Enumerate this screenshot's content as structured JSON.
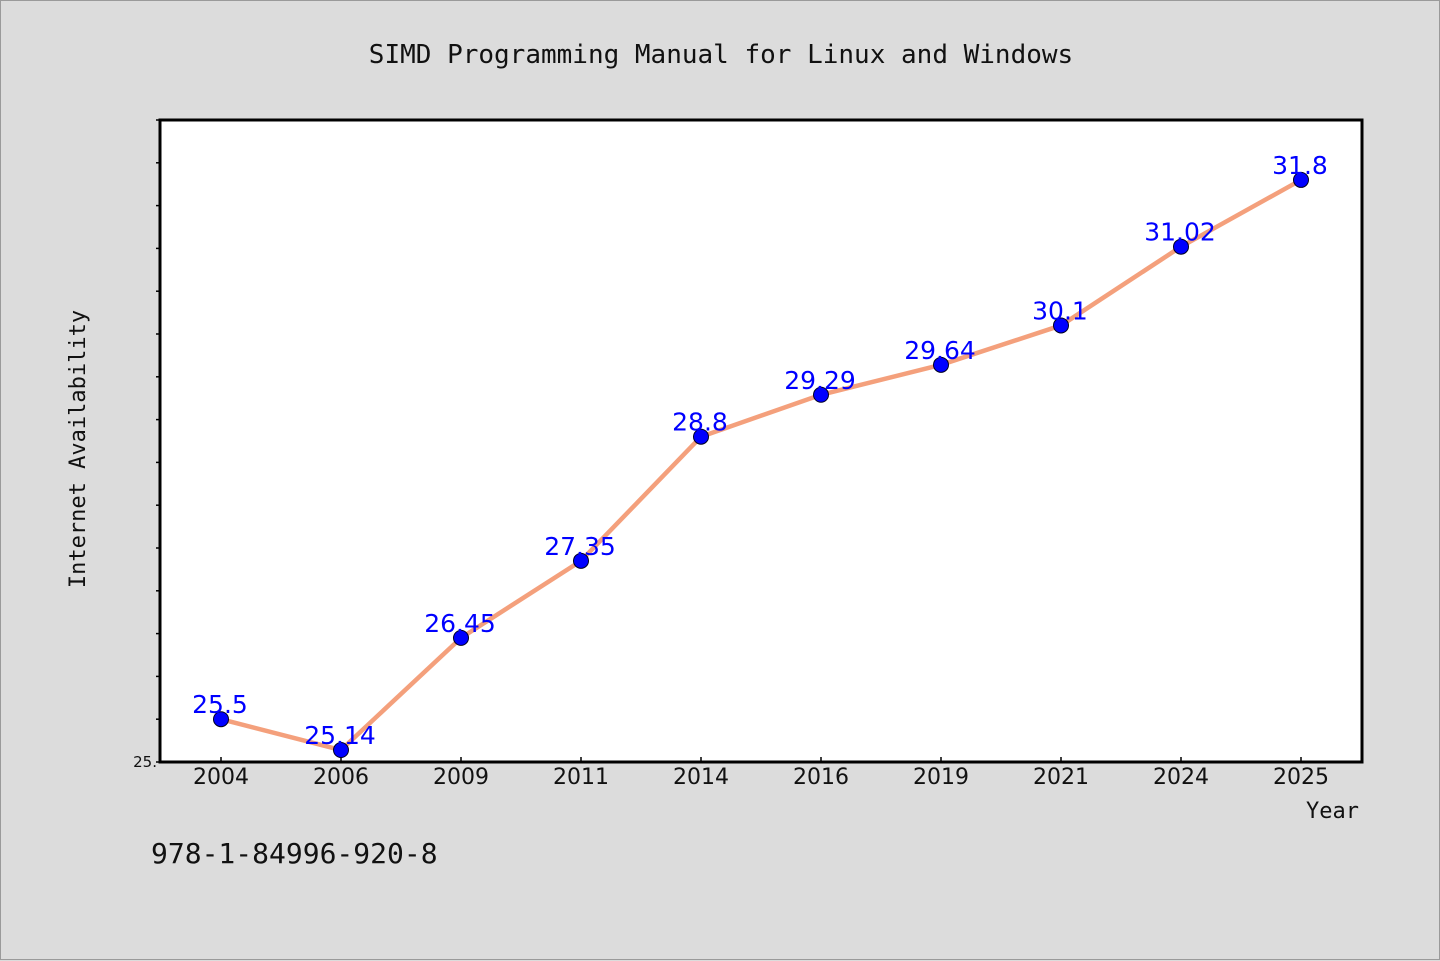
{
  "chart_data": {
    "type": "line",
    "title": "SIMD Programming Manual for Linux and Windows",
    "xlabel": "Year",
    "ylabel": "Internet Availability",
    "categories": [
      "2004",
      "2006",
      "2009",
      "2011",
      "2014",
      "2016",
      "2019",
      "2021",
      "2024",
      "2025"
    ],
    "series": [
      {
        "values": [
          25.5,
          25.14,
          26.45,
          27.35,
          28.8,
          29.29,
          29.64,
          30.1,
          31.02,
          31.8
        ],
        "labels": [
          "25.5",
          "25.14",
          "26.45",
          "27.35",
          "28.8",
          "29.29",
          "29.64",
          "30.1",
          "31.02",
          "31.8"
        ]
      }
    ],
    "ylim": [
      25.0,
      32.5
    ],
    "y_tick_labels": [
      "25."
    ],
    "line_color": "#f4a07c",
    "marker_color": "#0000ff",
    "label_color": "#0000ff",
    "grid": false,
    "legend": false
  },
  "footer": {
    "isbn": "978-1-84996-920-8"
  }
}
